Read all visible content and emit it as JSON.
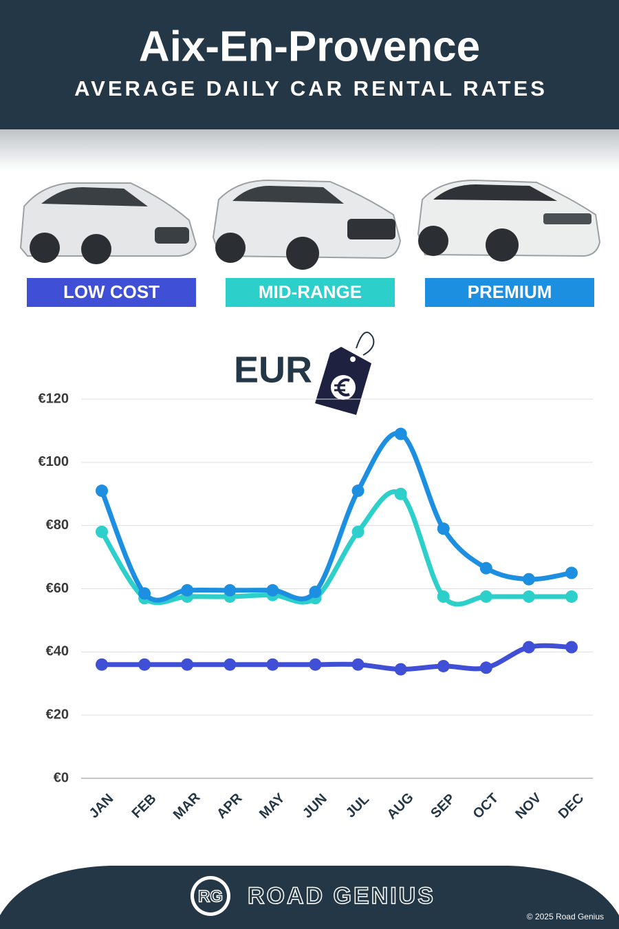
{
  "chart_data": {
    "type": "line",
    "title": "Aix-En-Provence",
    "subtitle": "AVERAGE DAILY CAR RENTAL RATES",
    "unit_label": "EUR",
    "categories": [
      "JAN",
      "FEB",
      "MAR",
      "APR",
      "MAY",
      "JUN",
      "JUL",
      "AUG",
      "SEP",
      "OCT",
      "NOV",
      "DEC"
    ],
    "series": [
      {
        "name": "LOW COST",
        "color": "#3f4fd6",
        "values": [
          36,
          36,
          36,
          36,
          36,
          36,
          36,
          34.5,
          35.5,
          35,
          41.5,
          41.5
        ]
      },
      {
        "name": "MID-RANGE",
        "color": "#2dcfca",
        "values": [
          78,
          57,
          57.5,
          57.5,
          58,
          57,
          78,
          90,
          57.5,
          57.5,
          57.5,
          57.5
        ]
      },
      {
        "name": "PREMIUM",
        "color": "#1d8fe1",
        "values": [
          91,
          58.5,
          59.5,
          59.5,
          59.5,
          59,
          91,
          109,
          79,
          66.5,
          63,
          65
        ]
      }
    ],
    "ylim": [
      0,
      120
    ],
    "yticks": [
      {
        "value": 0,
        "label": "€0"
      },
      {
        "value": 20,
        "label": "€20"
      },
      {
        "value": 40,
        "label": "€40"
      },
      {
        "value": 60,
        "label": "€60"
      },
      {
        "value": 80,
        "label": "€80"
      },
      {
        "value": 100,
        "label": "€100"
      },
      {
        "value": 120,
        "label": "€120"
      }
    ],
    "grid": true
  },
  "footer": {
    "logo": "RG",
    "brand": "ROAD GENIUS",
    "copyright": "© 2025 Road Genius"
  }
}
